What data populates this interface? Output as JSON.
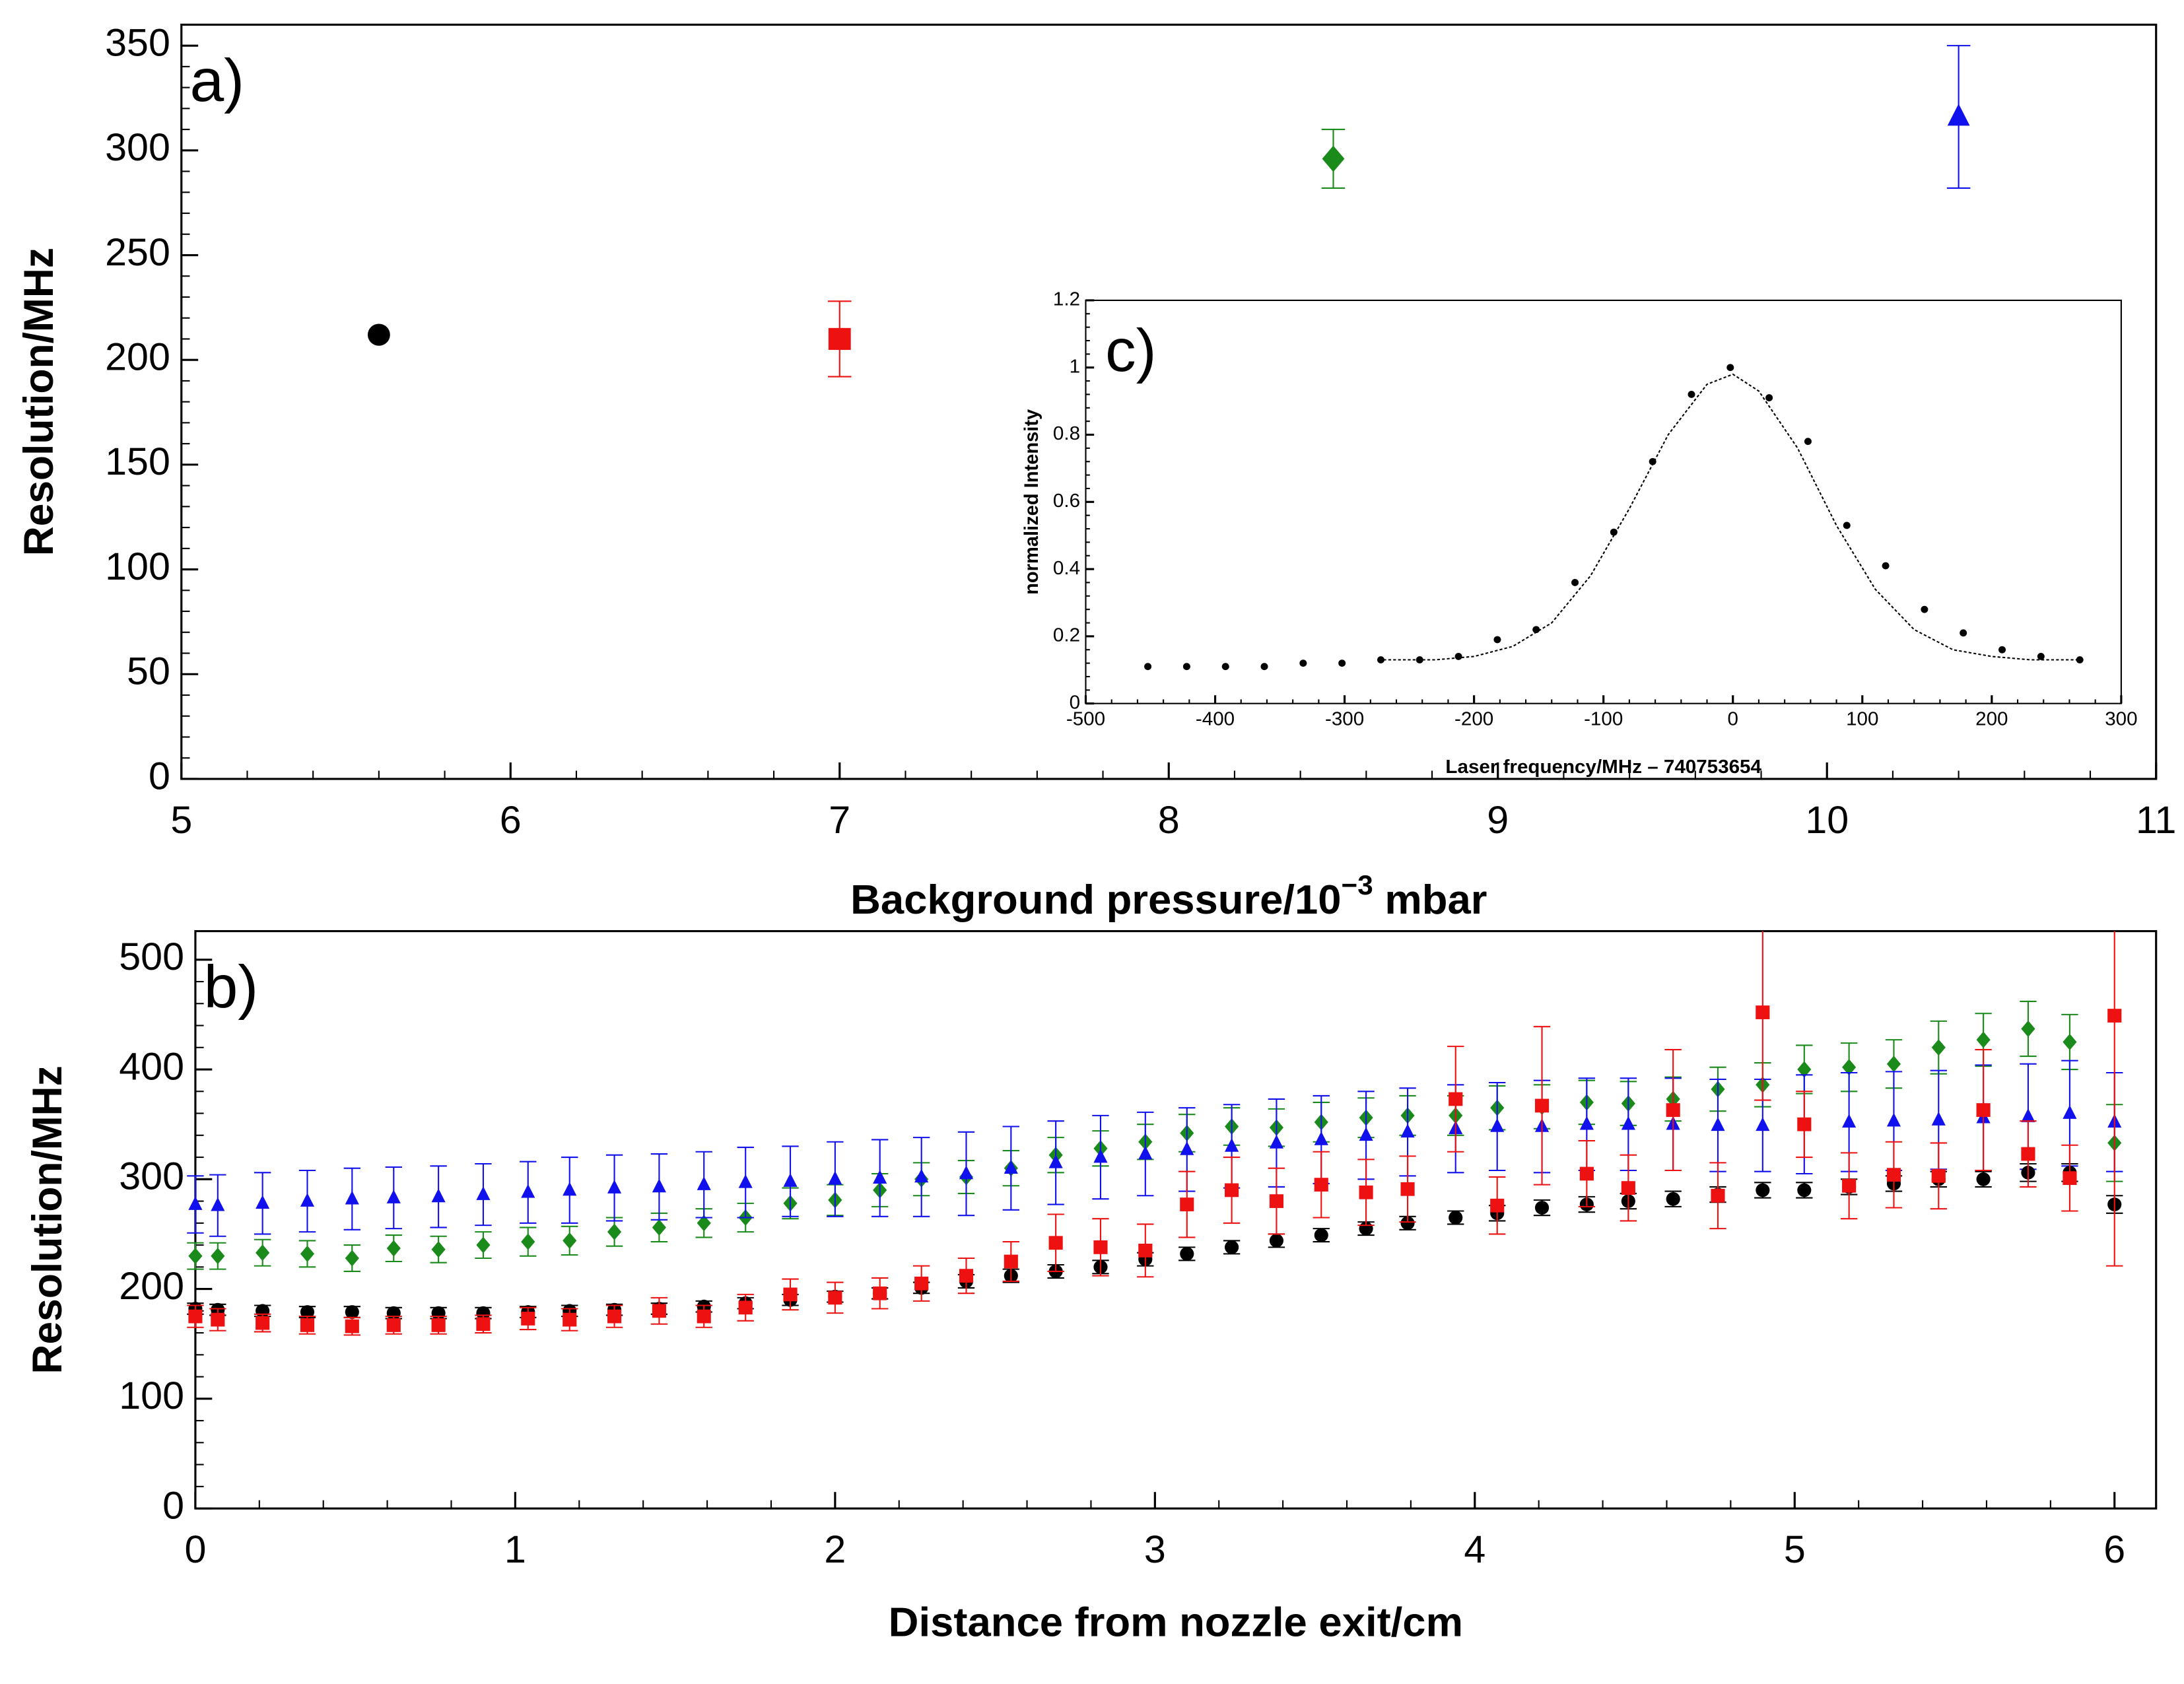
{
  "chart_data": [
    {
      "type": "scatter",
      "annotation": "a)",
      "xlabel": [
        "Background pressure/10",
        "−3",
        " mbar"
      ],
      "ylabel": "Resolution/MHz",
      "xlim": [
        5,
        11
      ],
      "ylim": [
        0,
        360
      ],
      "xticks": [
        5,
        6,
        7,
        8,
        9,
        10,
        11
      ],
      "yticks": [
        0,
        50,
        100,
        150,
        200,
        250,
        300,
        350
      ],
      "series": [
        {
          "color": "#000000",
          "marker": "circle",
          "x": [
            5.6
          ],
          "values": [
            212
          ]
        },
        {
          "color": "#ee1111",
          "marker": "square",
          "x": [
            7
          ],
          "values": [
            210
          ],
          "errors": [
            18
          ]
        },
        {
          "color": "#1a8a1a",
          "marker": "diamond",
          "x": [
            8.5
          ],
          "values": [
            296
          ],
          "errors": [
            14
          ]
        },
        {
          "color": "#1111ee",
          "marker": "triangle",
          "x": [
            10.4
          ],
          "values": [
            316
          ],
          "errors": [
            34
          ]
        }
      ]
    },
    {
      "type": "scatter",
      "annotation": "b)",
      "xlabel": [
        "Distance from nozzle exit/cm"
      ],
      "ylabel": "Resolution/MHz",
      "xlim": [
        0,
        6.13
      ],
      "ylim": [
        0,
        526
      ],
      "xticks": [
        0,
        1,
        2,
        3,
        4,
        5,
        6
      ],
      "yticks": [
        0,
        100,
        200,
        300,
        400,
        500
      ],
      "series": [
        {
          "color": "#1a8a1a",
          "marker": "diamond",
          "x": [
            0,
            0.07,
            0.21,
            0.35,
            0.49,
            0.62,
            0.76,
            0.9,
            1.04,
            1.17,
            1.31,
            1.45,
            1.59,
            1.72,
            1.86,
            2.0,
            2.14,
            2.27,
            2.41,
            2.55,
            2.69,
            2.83,
            2.97,
            3.1,
            3.24,
            3.38,
            3.52,
            3.66,
            3.79,
            3.94,
            4.07,
            4.21,
            4.35,
            4.48,
            4.62,
            4.76,
            4.9,
            5.03,
            5.17,
            5.31,
            5.45,
            5.59,
            5.73,
            5.86,
            6.0
          ],
          "values": [
            230,
            230,
            233,
            232,
            228,
            237,
            236,
            240,
            243,
            244,
            252,
            256,
            260,
            265,
            278,
            281,
            290,
            300,
            302,
            310,
            322,
            328,
            334,
            342,
            348,
            347,
            352,
            356,
            358,
            358,
            365,
            366,
            370,
            369,
            373,
            382,
            386,
            400,
            402,
            405,
            420,
            427,
            437,
            425,
            333
          ],
          "errors": [
            12,
            12,
            12,
            12,
            12,
            12,
            12,
            12,
            13,
            13,
            13,
            13,
            13,
            13,
            14,
            14,
            15,
            15,
            15,
            16,
            16,
            16,
            16,
            17,
            17,
            17,
            18,
            18,
            18,
            18,
            20,
            20,
            20,
            20,
            20,
            20,
            20,
            22,
            22,
            22,
            24,
            24,
            25,
            25,
            35
          ]
        },
        {
          "color": "#1111ee",
          "marker": "triangle",
          "x": [
            0,
            0.07,
            0.21,
            0.35,
            0.49,
            0.62,
            0.76,
            0.9,
            1.04,
            1.17,
            1.31,
            1.45,
            1.59,
            1.72,
            1.86,
            2.0,
            2.14,
            2.27,
            2.41,
            2.55,
            2.69,
            2.83,
            2.97,
            3.1,
            3.24,
            3.38,
            3.52,
            3.66,
            3.79,
            3.94,
            4.07,
            4.21,
            4.35,
            4.48,
            4.62,
            4.76,
            4.9,
            5.03,
            5.17,
            5.31,
            5.45,
            5.59,
            5.73,
            5.86,
            6.0
          ],
          "values": [
            277,
            276,
            278,
            280,
            282,
            283,
            284,
            286,
            288,
            290,
            292,
            293,
            295,
            297,
            298,
            300,
            301,
            302,
            305,
            310,
            315,
            320,
            323,
            327,
            330,
            333,
            336,
            340,
            343,
            346,
            348,
            348,
            350,
            350,
            350,
            349,
            349,
            350,
            352,
            353,
            354,
            356,
            357,
            360,
            352
          ],
          "errors": [
            26,
            28,
            28,
            28,
            28,
            28,
            28,
            28,
            28,
            30,
            30,
            30,
            30,
            32,
            32,
            34,
            35,
            36,
            38,
            38,
            38,
            38,
            38,
            38,
            38,
            40,
            40,
            40,
            40,
            40,
            40,
            42,
            42,
            42,
            42,
            42,
            42,
            45,
            45,
            45,
            45,
            48,
            48,
            48,
            45
          ]
        },
        {
          "color": "#000000",
          "marker": "circle",
          "x": [
            0,
            0.07,
            0.21,
            0.35,
            0.49,
            0.62,
            0.76,
            0.9,
            1.04,
            1.17,
            1.31,
            1.45,
            1.59,
            1.72,
            1.86,
            2.0,
            2.14,
            2.27,
            2.41,
            2.55,
            2.69,
            2.83,
            2.97,
            3.1,
            3.24,
            3.38,
            3.52,
            3.66,
            3.79,
            3.94,
            4.07,
            4.21,
            4.35,
            4.48,
            4.62,
            4.76,
            4.9,
            5.03,
            5.17,
            5.31,
            5.45,
            5.59,
            5.73,
            5.86,
            6.0
          ],
          "values": [
            182,
            181,
            180,
            179,
            179,
            178,
            178,
            178,
            179,
            180,
            181,
            182,
            184,
            187,
            190,
            193,
            196,
            201,
            207,
            212,
            216,
            220,
            227,
            232,
            238,
            244,
            249,
            255,
            260,
            265,
            269,
            274,
            277,
            280,
            282,
            286,
            290,
            290,
            293,
            296,
            300,
            300,
            306,
            306,
            277
          ],
          "errors": [
            5,
            5,
            5,
            5,
            5,
            5,
            5,
            5,
            5,
            5,
            5,
            5,
            5,
            5,
            5,
            5,
            5,
            5,
            6,
            6,
            6,
            6,
            6,
            6,
            6,
            6,
            6,
            6,
            6,
            6,
            7,
            7,
            7,
            7,
            7,
            7,
            7,
            7,
            7,
            7,
            7,
            7,
            8,
            8,
            8
          ]
        },
        {
          "color": "#ee1111",
          "marker": "square",
          "x": [
            0,
            0.07,
            0.21,
            0.35,
            0.49,
            0.62,
            0.76,
            0.9,
            1.04,
            1.17,
            1.31,
            1.45,
            1.59,
            1.72,
            1.86,
            2.0,
            2.14,
            2.27,
            2.41,
            2.55,
            2.69,
            2.83,
            2.97,
            3.1,
            3.24,
            3.38,
            3.52,
            3.66,
            3.79,
            3.94,
            4.07,
            4.21,
            4.35,
            4.48,
            4.62,
            4.76,
            4.9,
            5.03,
            5.17,
            5.31,
            5.45,
            5.59,
            5.73,
            5.86,
            6.0
          ],
          "values": [
            175,
            172,
            169,
            167,
            166,
            167,
            167,
            168,
            173,
            172,
            175,
            180,
            175,
            183,
            195,
            192,
            196,
            205,
            212,
            225,
            242,
            238,
            235,
            277,
            290,
            280,
            295,
            288,
            291,
            373,
            276,
            367,
            305,
            292,
            363,
            285,
            452,
            350,
            294,
            304,
            303,
            363,
            323,
            301,
            449
          ],
          "errors": [
            10,
            10,
            8,
            8,
            8,
            8,
            8,
            8,
            10,
            10,
            10,
            12,
            10,
            12,
            14,
            14,
            14,
            16,
            16,
            18,
            26,
            26,
            24,
            30,
            30,
            30,
            30,
            30,
            30,
            48,
            26,
            72,
            30,
            30,
            55,
            30,
            80,
            30,
            30,
            30,
            30,
            55,
            30,
            30,
            228
          ]
        }
      ]
    },
    {
      "type": "line",
      "annotation": "c)",
      "xlabel": [
        "Laser frequency/MHz – 740753654"
      ],
      "ylabel": "normalized Intensity",
      "xlim": [
        -500,
        300
      ],
      "ylim": [
        0,
        1.2
      ],
      "xticks": [
        -500,
        -400,
        -300,
        -200,
        -100,
        0,
        100,
        200,
        300
      ],
      "yticks": [
        0,
        0.2,
        0.4,
        0.6,
        0.8,
        1,
        1.2
      ],
      "series": [
        {
          "color": "#000000",
          "mode": "line",
          "x": [
            -270,
            -230,
            -200,
            -170,
            -140,
            -110,
            -80,
            -50,
            -20,
            0,
            20,
            50,
            80,
            110,
            140,
            170,
            200,
            230,
            270
          ],
          "values": [
            0.13,
            0.13,
            0.14,
            0.17,
            0.24,
            0.38,
            0.58,
            0.8,
            0.95,
            0.98,
            0.93,
            0.76,
            0.53,
            0.34,
            0.22,
            0.16,
            0.14,
            0.13,
            0.13
          ]
        },
        {
          "color": "#000000",
          "mode": "markers",
          "x": [
            -452,
            -422,
            -392,
            -362,
            -332,
            -302,
            -272,
            -242,
            -212,
            -182,
            -152,
            -122,
            -92,
            -62,
            -32,
            -2,
            28,
            58,
            88,
            118,
            148,
            178,
            208,
            238,
            268
          ],
          "values": [
            0.11,
            0.11,
            0.11,
            0.11,
            0.12,
            0.12,
            0.13,
            0.13,
            0.14,
            0.19,
            0.22,
            0.36,
            0.51,
            0.72,
            0.92,
            1.0,
            0.91,
            0.78,
            0.53,
            0.41,
            0.28,
            0.21,
            0.16,
            0.14,
            0.13
          ]
        }
      ]
    }
  ]
}
